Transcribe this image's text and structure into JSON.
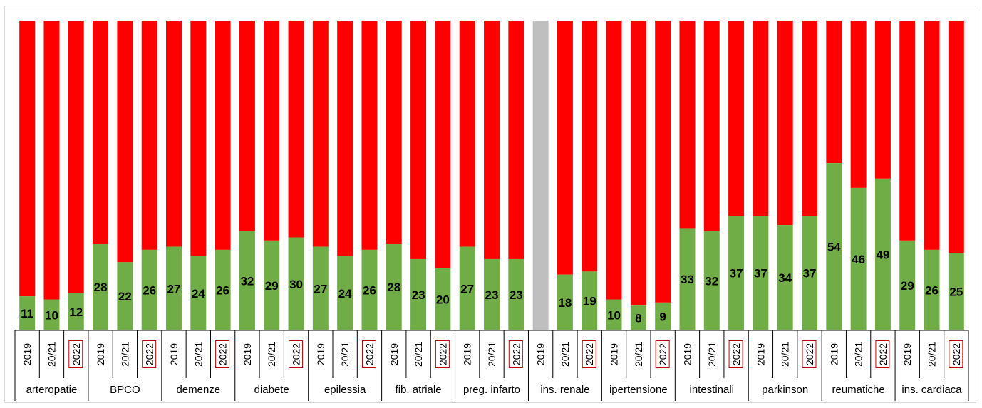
{
  "colors": {
    "green": "#70ad47",
    "red": "#ff0000",
    "gray": "#bfbfbf",
    "axis": "#000000",
    "highlight": "#c00000"
  },
  "chart_data": {
    "type": "bar",
    "stacked": "percent",
    "ylim": [
      0,
      100
    ],
    "groups": [
      {
        "name": "arteropatie",
        "bars": [
          {
            "period": "2019",
            "value": 11
          },
          {
            "period": "20/21",
            "value": 10
          },
          {
            "period": "2022",
            "value": 12
          }
        ]
      },
      {
        "name": "BPCO",
        "bars": [
          {
            "period": "2019",
            "value": 28
          },
          {
            "period": "20/21",
            "value": 22
          },
          {
            "period": "2022",
            "value": 26
          }
        ]
      },
      {
        "name": "demenze",
        "bars": [
          {
            "period": "2019",
            "value": 27
          },
          {
            "period": "20/21",
            "value": 24
          },
          {
            "period": "2022",
            "value": 26
          }
        ]
      },
      {
        "name": "diabete",
        "bars": [
          {
            "period": "2019",
            "value": 32
          },
          {
            "period": "20/21",
            "value": 29
          },
          {
            "period": "2022",
            "value": 30
          }
        ]
      },
      {
        "name": "epilessia",
        "bars": [
          {
            "period": "2019",
            "value": 27
          },
          {
            "period": "20/21",
            "value": 24
          },
          {
            "period": "2022",
            "value": 26
          }
        ]
      },
      {
        "name": "fib. atriale",
        "bars": [
          {
            "period": "2019",
            "value": 28
          },
          {
            "period": "20/21",
            "value": 23
          },
          {
            "period": "2022",
            "value": 20
          }
        ]
      },
      {
        "name": "preg. infarto",
        "bars": [
          {
            "period": "2019",
            "value": 27
          },
          {
            "period": "20/21",
            "value": 23
          },
          {
            "period": "2022",
            "value": 23
          }
        ]
      },
      {
        "name": "ins. renale",
        "bars": [
          {
            "period": "2019",
            "value": null
          },
          {
            "period": "20/21",
            "value": 18
          },
          {
            "period": "2022",
            "value": 19
          }
        ]
      },
      {
        "name": "ipertensione",
        "bars": [
          {
            "period": "2019",
            "value": 10
          },
          {
            "period": "20/21",
            "value": 8
          },
          {
            "period": "2022",
            "value": 9
          }
        ]
      },
      {
        "name": "intestinali",
        "bars": [
          {
            "period": "2019",
            "value": 33
          },
          {
            "period": "20/21",
            "value": 32
          },
          {
            "period": "2022",
            "value": 37
          }
        ]
      },
      {
        "name": "parkinson",
        "bars": [
          {
            "period": "2019",
            "value": 37
          },
          {
            "period": "20/21",
            "value": 34
          },
          {
            "period": "2022",
            "value": 37
          }
        ]
      },
      {
        "name": "reumatiche",
        "bars": [
          {
            "period": "2019",
            "value": 54
          },
          {
            "period": "20/21",
            "value": 46
          },
          {
            "period": "2022",
            "value": 49
          }
        ]
      },
      {
        "name": "ins. cardiaca",
        "bars": [
          {
            "period": "2019",
            "value": 29
          },
          {
            "period": "20/21",
            "value": 26
          },
          {
            "period": "2022",
            "value": 25
          }
        ]
      }
    ],
    "highlighted_period": "2022"
  }
}
